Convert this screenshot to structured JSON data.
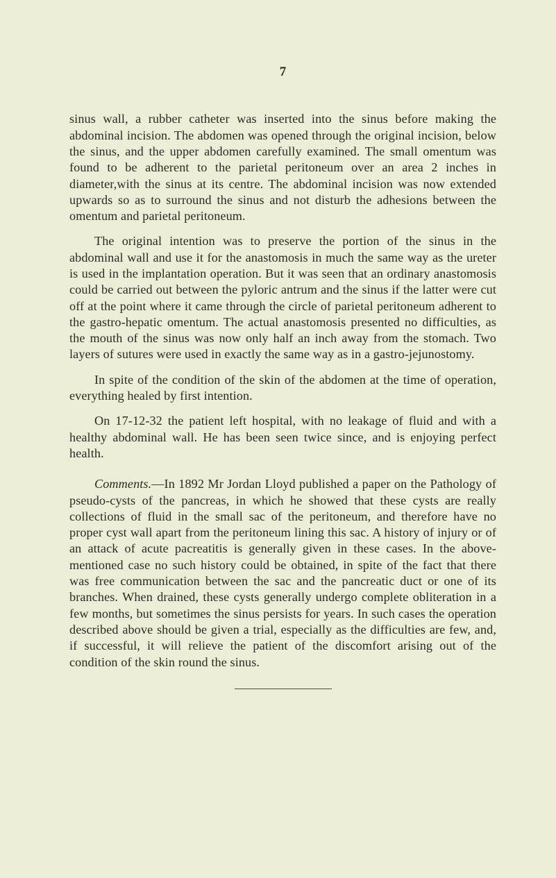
{
  "page_number": "7",
  "paragraphs": {
    "p1": "sinus wall, a rubber catheter was inserted into the sinus before making the abdominal incision. The abdomen was opened through the original incision, below the sinus, and the upper abdomen care­fully examined. The small omentum was found to be adherent to the parietal peritoneum over an area 2 inches in diameter,with the sinus at its centre. The abdominal incision was now extended upwards so as to surround the sinus and not disturb the adhesions between the omentum and parietal peritoneum.",
    "p2": "The original intention was to preserve the portion of the sinus in the abdominal wall and use it for the anastomosis in much the same way as the ureter is used in the implantation operation. But it was seen that an ordinary anastomosis could be carried out between the pyloric antrum and the sinus if the latter were cut off at the point where it came through the circle of parietal peritoneum adherent to the gastro-hepatic omentum. The actual anastomosis presented no difficulties, as the mouth of the sinus was now only half an inch away from the stomach. Two layers of sutures were used in exactly the same way as in a gastro-jejunostomy.",
    "p3": "In spite of the condition of the skin of the abdomen at the time of operation, everything healed by first intention.",
    "p4": "On 17-12-32 the patient left hospital, with no leakage of fluid and with a healthy abdominal wall. He has been seen twice since, and is enjoying perfect health.",
    "comments_label": "Comments.",
    "p5": "—In 1892 Mr Jordan Lloyd published a paper on the Pathology of pseudo-cysts of the pancreas, in which he showed that these cysts are really collections of fluid in the small sac of the peritoneum, and therefore have no proper cyst wall apart from the peritoneum lining this sac. A history of injury or of an attack of acute pacreatitis is generally given in these cases. In the above-mentioned case no such history could be obtained, in spite of the fact that there was free communication between the sac and the pancreatic duct or one of its branches. When drained, these cysts generally undergo complete obliteration in a few months, but sometimes the sinus persists for years. In such cases the operation described above should be given a trial, especially as the difficulties are few, and, if successful, it will relieve the patient of the discomfort arising out of the condition of the skin round the sinus."
  }
}
